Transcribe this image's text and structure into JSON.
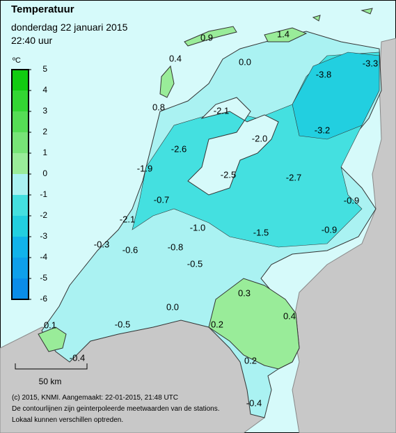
{
  "header": {
    "title": "Temperatuur",
    "subtitle": "donderdag 22 januari 2015",
    "time": "22:40 uur"
  },
  "legend": {
    "unit": "ºC",
    "ticks": [
      5,
      4,
      3,
      2,
      1,
      0,
      -1,
      -2,
      -3,
      -4,
      -5,
      -6
    ],
    "colors": [
      "#11cc11",
      "#33d633",
      "#55dd55",
      "#77e477",
      "#99ec99",
      "#aaf2f2",
      "#44e0e0",
      "#22cfe0",
      "#11b3ea",
      "#0ea0ea",
      "#0a8de8"
    ]
  },
  "stations": [
    "0.9",
    "1.4",
    "0.4",
    "0.0",
    "-3.3",
    "-3.8",
    "0.8",
    "-2.1",
    "-3.2",
    "-2.0",
    "-2.6",
    "-1.9",
    "-2.5",
    "-2.7",
    "-0.7",
    "-0.9",
    "-2.1",
    "-1.0",
    "-1.5",
    "-0.9",
    "-0.3",
    "-0.6",
    "-0.8",
    "-0.5",
    "0.3",
    "0.0",
    "0.4",
    "0.1",
    "-0.5",
    "0.2",
    "0.2",
    "-0.4",
    "-0.4"
  ],
  "scale": "50 km",
  "footer": [
    "(c) 2015, KNMI. Aangemaakt: 22-01-2015, 21:48 UTC",
    "De contourlijnen zijn geinterpoleerde meetwaarden van de stations.",
    "Lokaal kunnen verschillen optreden."
  ]
}
